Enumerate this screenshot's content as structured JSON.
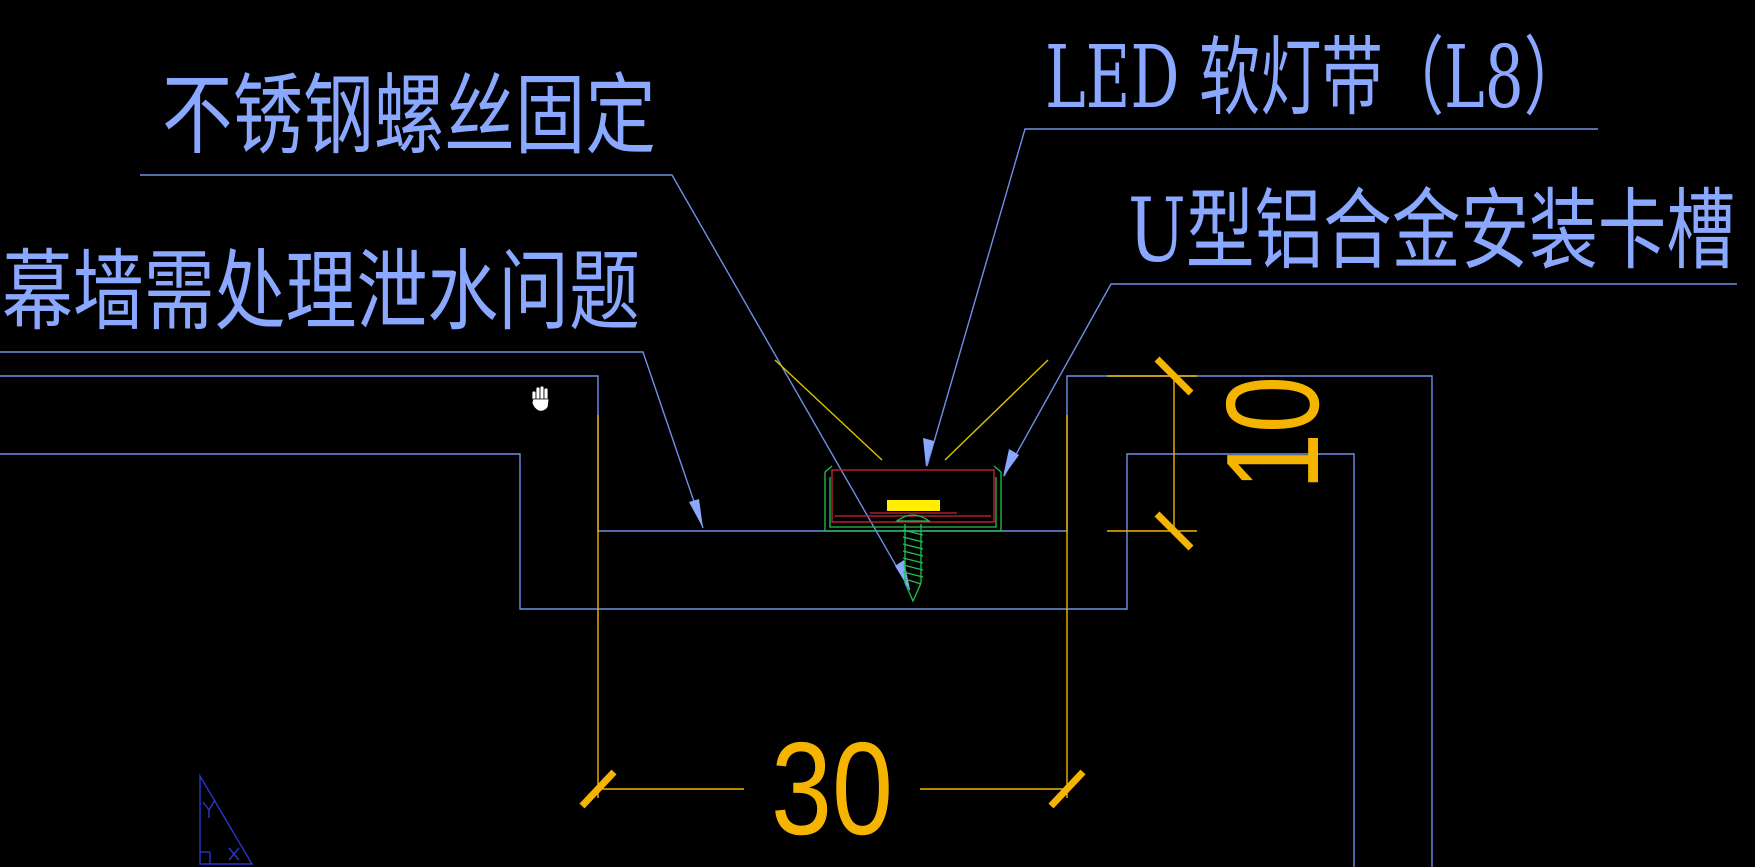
{
  "labels": {
    "screw": "不锈钢螺丝固定",
    "led": "LED 软灯带（L8）",
    "channel": "U型铝合金安装卡槽",
    "curtain_wall": "幕墙需处理泄水问题"
  },
  "dimensions": {
    "width": "30",
    "depth": "10"
  },
  "icons": {
    "cursor": "pan-hand-icon",
    "ucs": "ucs-icon"
  },
  "colors": {
    "background": "#000000",
    "outline": "#6f8fe8",
    "label_text": "#8aa8ff",
    "dimension": "#f5b400",
    "light_ray": "#d8c400",
    "profile_red": "#d0243c",
    "profile_green": "#22c24a",
    "led_chip": "#ffee00",
    "ucs": "#2b36c8"
  }
}
